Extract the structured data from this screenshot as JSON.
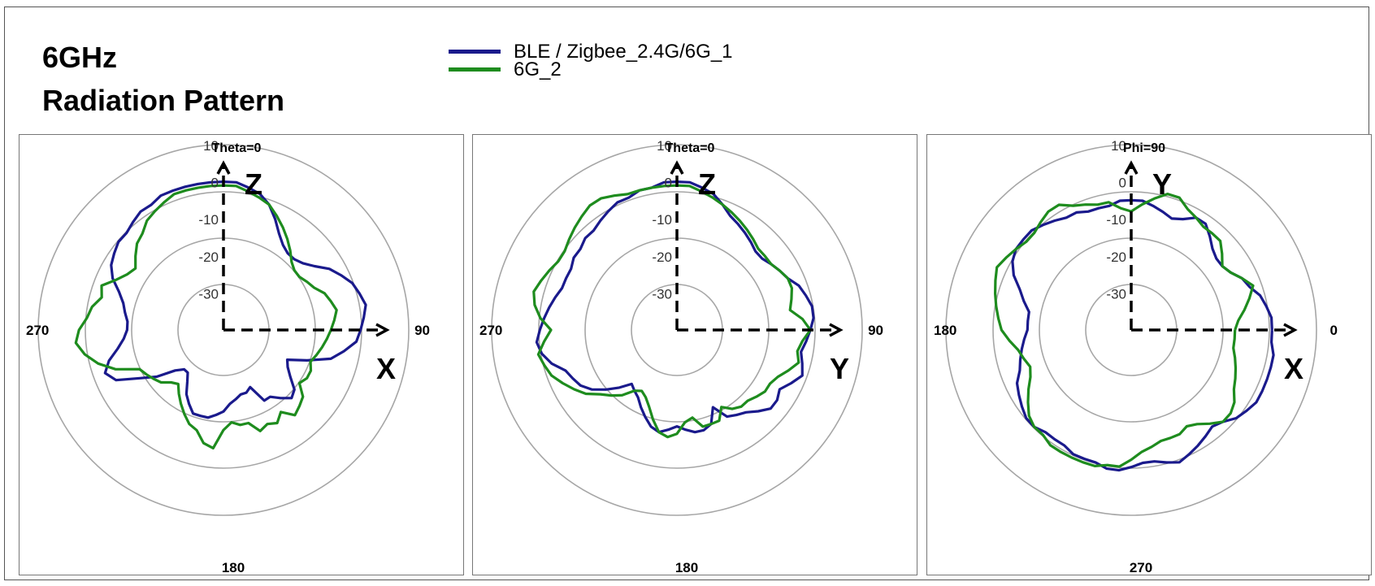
{
  "header": {
    "title_line1": "6GHz",
    "title_line2": "Radiation Pattern"
  },
  "legend": [
    {
      "name": "BLE / Zigbee_2.4G/6G_1",
      "color": "#1a1a8c"
    },
    {
      "name": "6G_2",
      "color": "#1e8c1e"
    }
  ],
  "chart_data": [
    {
      "type": "polar",
      "plane_label": "Theta=0",
      "angle_labels": {
        "top": "",
        "right": "90",
        "bottom": "180",
        "left": "270"
      },
      "r_ticks": [
        "10",
        "0",
        "-10",
        "-20",
        "-30"
      ],
      "r_range": [
        -40,
        10
      ],
      "axis_labels": {
        "vertical": "Z",
        "horizontal": "X"
      },
      "angle_direction": "clockwise",
      "angle_zero": "top",
      "series": [
        {
          "name": "BLE / Zigbee_2.4G/6G_1",
          "color": "#1a1a8c",
          "values": [
            0,
            0,
            -1,
            -2,
            -4,
            -7,
            -10,
            -12,
            -13,
            -13,
            -12,
            -10,
            -7,
            -5,
            -3,
            -2,
            -1,
            -2,
            -3,
            -4,
            -7,
            -10,
            -16,
            -21,
            -20,
            -18,
            -15,
            -14,
            -16,
            -18,
            -18,
            -23,
            -22,
            -22,
            -21,
            -20,
            -18,
            -17,
            -16,
            -16,
            -16,
            -18,
            -20,
            -23,
            -25,
            -25,
            -23,
            -18,
            -14,
            -8,
            -6,
            -8,
            -11,
            -13,
            -14,
            -14,
            -13,
            -12,
            -10,
            -7,
            -5,
            -4,
            -3,
            -3,
            -2,
            -1,
            -1,
            0,
            0,
            0,
            0,
            0
          ]
        },
        {
          "name": "6G_2",
          "color": "#1e8c1e",
          "values": [
            -1,
            -1,
            -2,
            -3,
            -4,
            -6,
            -8,
            -10,
            -12,
            -14,
            -15,
            -15,
            -14,
            -13,
            -11,
            -10,
            -9,
            -10,
            -11,
            -12,
            -13,
            -14,
            -15,
            -14,
            -14,
            -15,
            -12,
            -11,
            -10,
            -13,
            -11,
            -12,
            -11,
            -14,
            -14,
            -15,
            -13,
            -8,
            -9,
            -12,
            -13,
            -15,
            -17,
            -19,
            -21,
            -20,
            -18,
            -17,
            -16,
            -15,
            -9,
            -5,
            -2,
            0,
            -1,
            -3,
            -4,
            -6,
            -5,
            -8,
            -10,
            -11,
            -9,
            -7,
            -6,
            -4,
            -3,
            -2,
            -1,
            -1,
            -1,
            -1
          ]
        }
      ]
    },
    {
      "type": "polar",
      "plane_label": "Theta=0",
      "angle_labels": {
        "top": "",
        "right": "90",
        "bottom": "180",
        "left": "270"
      },
      "r_ticks": [
        "10",
        "0",
        "-10",
        "-20",
        "-30"
      ],
      "r_range": [
        -40,
        10
      ],
      "axis_labels": {
        "vertical": "Z",
        "horizontal": "Y"
      },
      "angle_direction": "clockwise",
      "angle_zero": "top",
      "series": [
        {
          "name": "BLE / Zigbee_2.4G/6G_1",
          "color": "#1a1a8c",
          "values": [
            0,
            0,
            -1,
            -2,
            -4,
            -6,
            -7,
            -8,
            -9,
            -10,
            -10,
            -9,
            -8,
            -7,
            -5,
            -4,
            -3,
            -3,
            -4,
            -5,
            -6,
            -5,
            -4,
            -6,
            -8,
            -7,
            -7,
            -9,
            -11,
            -12,
            -13,
            -17,
            -13,
            -12,
            -12,
            -13,
            -14,
            -13,
            -12,
            -13,
            -15,
            -17,
            -19,
            -20,
            -21,
            -18,
            -15,
            -12,
            -10,
            -9,
            -8,
            -5,
            -3,
            -2,
            -3,
            -4,
            -5,
            -6,
            -7,
            -7,
            -7,
            -6,
            -6,
            -5,
            -5,
            -4,
            -3,
            -2,
            -2,
            -1,
            -1,
            0
          ]
        },
        {
          "name": "6G_2",
          "color": "#1e8c1e",
          "values": [
            -1,
            -1,
            -2,
            -3,
            -4,
            -5,
            -6,
            -7,
            -8,
            -9,
            -9,
            -9,
            -8,
            -7,
            -7,
            -8,
            -9,
            -6,
            -4,
            -6,
            -7,
            -6,
            -8,
            -10,
            -11,
            -11,
            -12,
            -13,
            -13,
            -14,
            -16,
            -13,
            -13,
            -13,
            -16,
            -15,
            -12,
            -11,
            -12,
            -15,
            -18,
            -20,
            -21,
            -20,
            -17,
            -15,
            -13,
            -10,
            -8,
            -6,
            -4,
            -3,
            -2,
            -4,
            -6,
            -3,
            -1,
            0,
            -1,
            -2,
            -3,
            -3,
            -2,
            -1,
            0,
            1,
            1,
            0,
            -1,
            -1,
            -1,
            -1
          ]
        }
      ]
    },
    {
      "type": "polar",
      "plane_label": "Phi=90",
      "angle_labels": {
        "top": "",
        "right": "0",
        "bottom": "270",
        "left": "180"
      },
      "r_ticks": [
        "10",
        "0",
        "-10",
        "-20",
        "-30"
      ],
      "r_range": [
        -40,
        10
      ],
      "axis_labels": {
        "vertical": "Y",
        "horizontal": "X"
      },
      "angle_direction": "counterclockwise",
      "angle_zero": "right",
      "series": [
        {
          "name": "BLE / Zigbee_2.4G/6G_1",
          "color": "#1a1a8c",
          "values": [
            -2,
            -2,
            -3,
            -4,
            -6,
            -7,
            -9,
            -10,
            -10,
            -9,
            -7,
            -5,
            -5,
            -7,
            -8,
            -7,
            -6,
            -5,
            -5,
            -5,
            -6,
            -6,
            -6,
            -5,
            -5,
            -4,
            -3,
            -2,
            -2,
            -2,
            -3,
            -5,
            -8,
            -10,
            -12,
            -12,
            -12,
            -11,
            -10,
            -9,
            -8,
            -6,
            -5,
            -4,
            -3,
            -3,
            -4,
            -4,
            -4,
            -3,
            -3,
            -3,
            -2,
            -2,
            -3,
            -4,
            -4,
            -3,
            -2,
            -3,
            -4,
            -5,
            -6,
            -5,
            -3,
            -2,
            -1,
            -1,
            -1,
            -1,
            -1,
            -2
          ]
        },
        {
          "name": "6G_2",
          "color": "#1e8c1e",
          "values": [
            -12,
            -11,
            -9,
            -7,
            -5,
            -7,
            -9,
            -10,
            -8,
            -6,
            -6,
            -6,
            -5,
            -4,
            -2,
            -2,
            -4,
            -6,
            -8,
            -7,
            -5,
            -5,
            -4,
            -3,
            -1,
            -1,
            -2,
            -3,
            -3,
            -2,
            -1,
            0,
            -1,
            -2,
            -3,
            -4,
            -5,
            -7,
            -9,
            -10,
            -11,
            -10,
            -8,
            -6,
            -4,
            -3,
            -3,
            -2,
            -2,
            -2,
            -2,
            -2,
            -3,
            -3,
            -5,
            -7,
            -8,
            -9,
            -9,
            -9,
            -10,
            -9,
            -7,
            -5,
            -5,
            -6,
            -8,
            -9,
            -10,
            -11,
            -12,
            -12
          ]
        }
      ]
    }
  ]
}
